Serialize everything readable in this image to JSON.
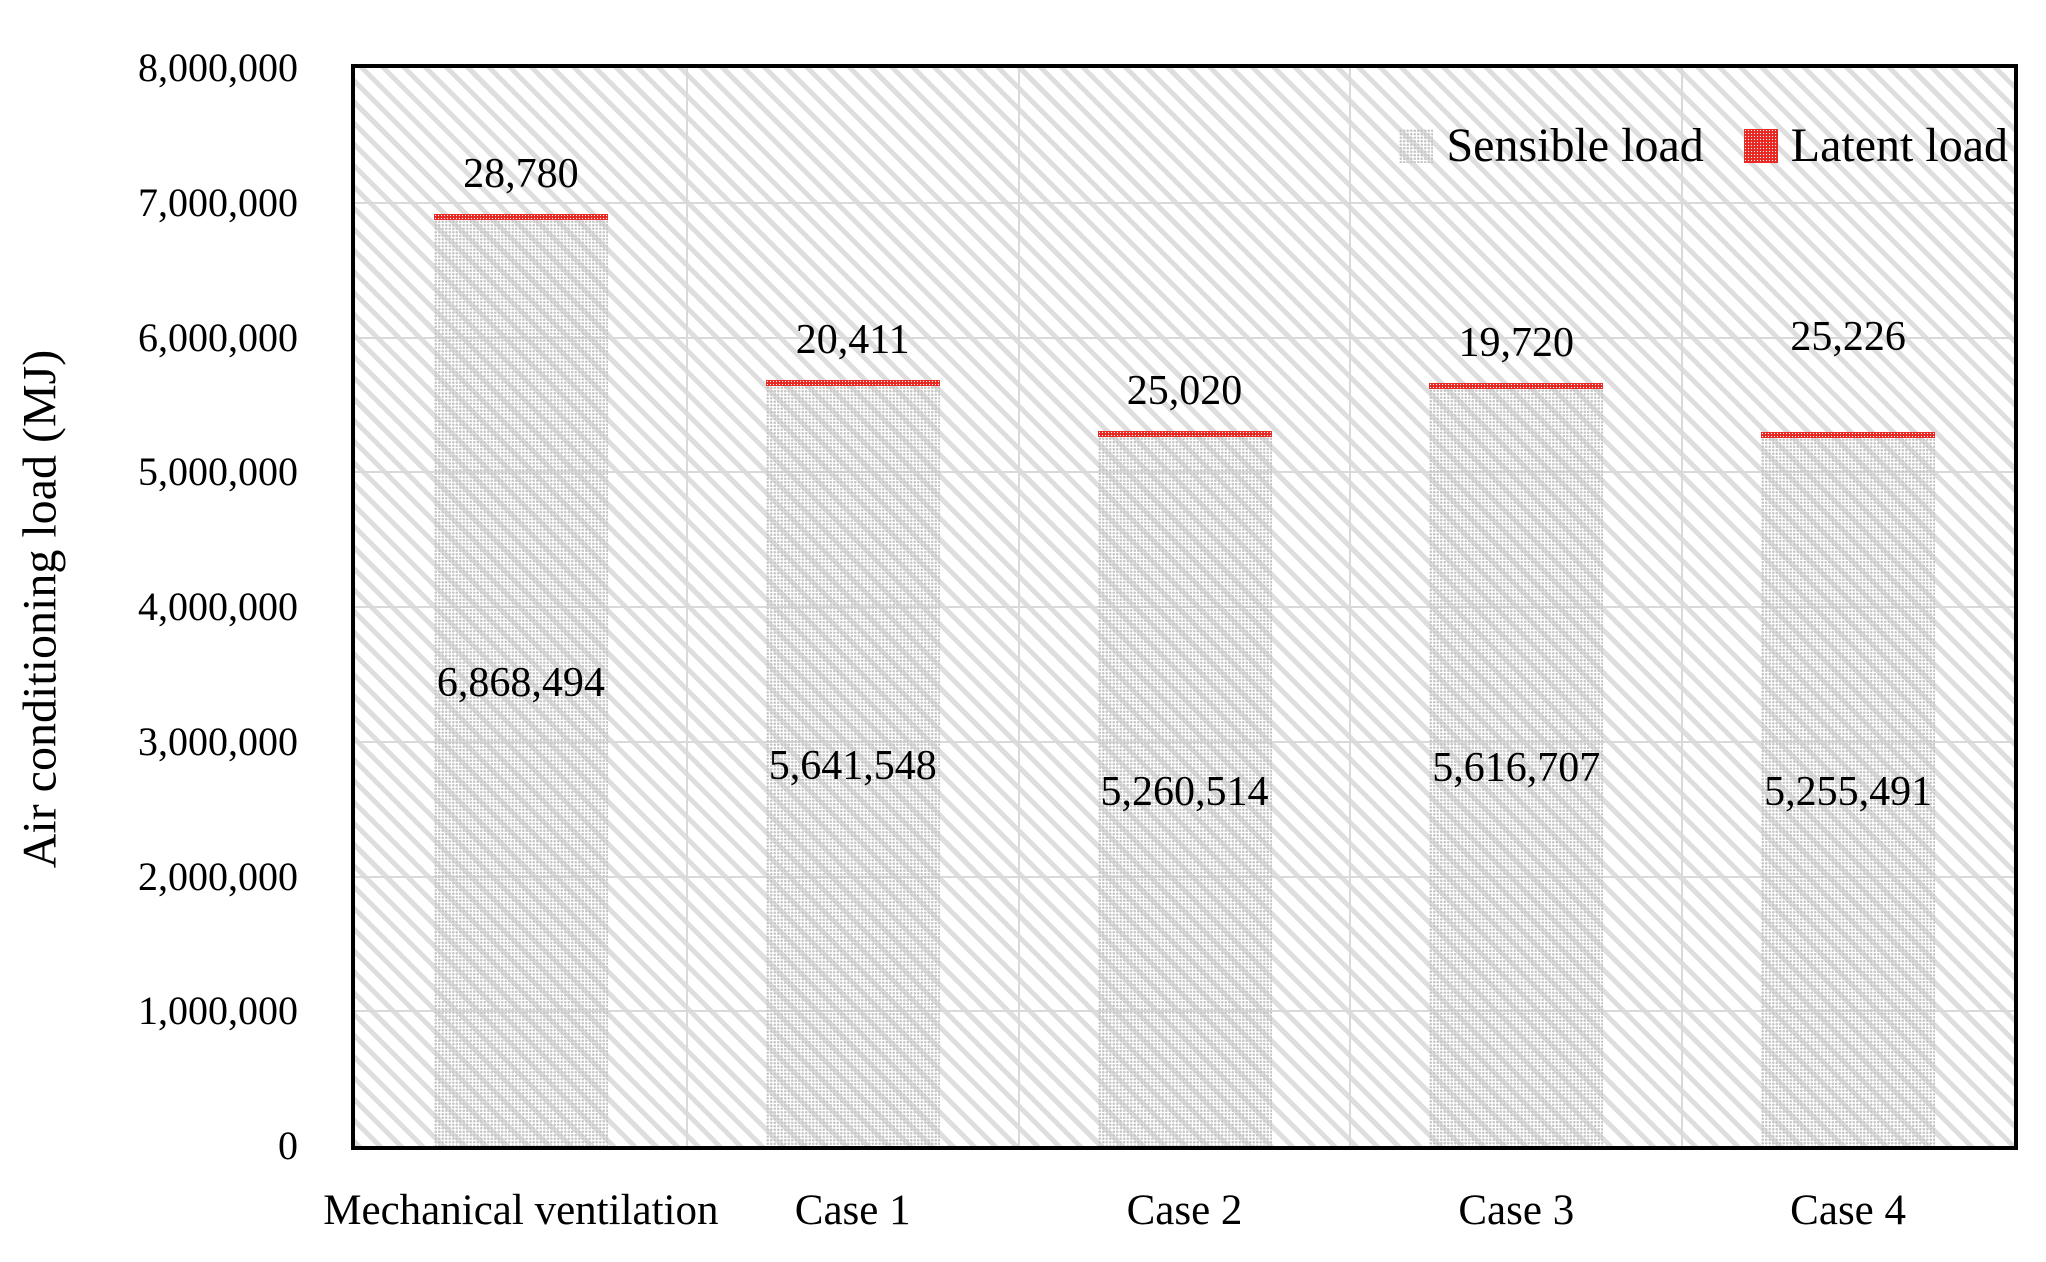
{
  "chart_data": {
    "type": "bar",
    "stacked": true,
    "title": "",
    "ylabel": "Air conditioning load (MJ)",
    "xlabel": "",
    "ylim": [
      0,
      8000000
    ],
    "ytick_step": 1000000,
    "ytick_labels": [
      "0",
      "1,000,000",
      "2,000,000",
      "3,000,000",
      "4,000,000",
      "5,000,000",
      "6,000,000",
      "7,000,000",
      "8,000,000"
    ],
    "categories": [
      "Mechanical ventilation",
      "Case 1",
      "Case 2",
      "Case 3",
      "Case 4"
    ],
    "series": [
      {
        "name": "Sensible load",
        "pattern": "gray-dotted",
        "color": "#c7c7c7",
        "values": [
          6868494,
          5641548,
          5260514,
          5616707,
          5255491
        ],
        "value_labels": [
          "6,868,494",
          "5,641,548",
          "5,260,514",
          "5,616,707",
          "5,255,491"
        ]
      },
      {
        "name": "Latent load",
        "pattern": "red-dotted",
        "color": "#e8251f",
        "values": [
          28780,
          20411,
          25020,
          19720,
          25226
        ],
        "value_labels": [
          "28,780",
          "20,411",
          "25,020",
          "19,720",
          "25,226"
        ]
      }
    ],
    "grid": true,
    "grid_color": "#d9d9d9",
    "plot_background": "light-gray diagonal hatch",
    "axis_border_color": "#000000",
    "legend_position": "top-right-inside"
  }
}
